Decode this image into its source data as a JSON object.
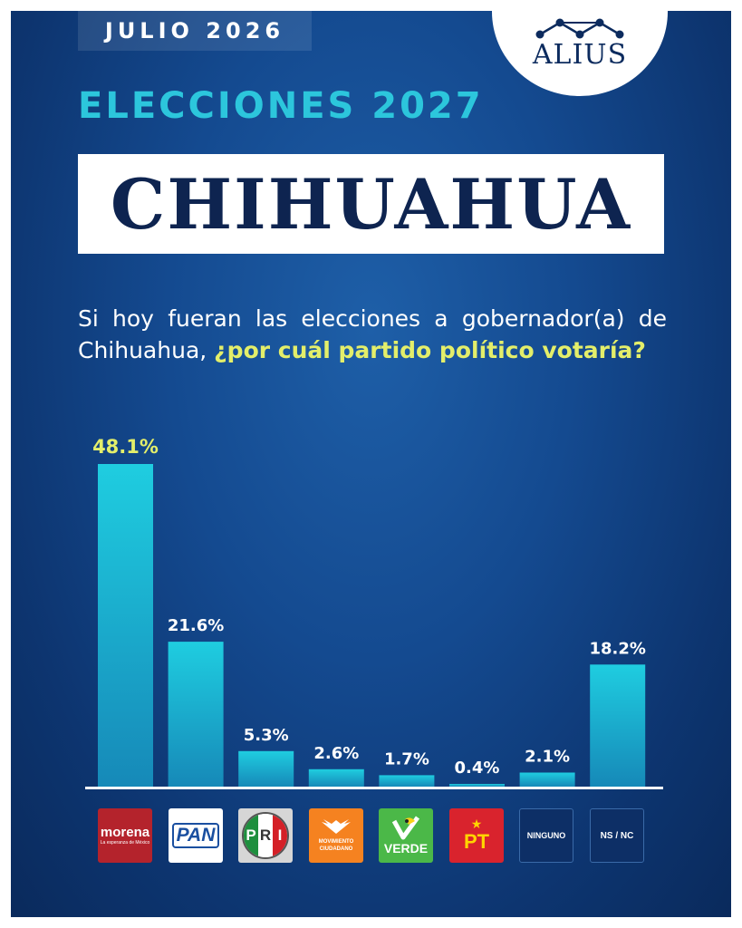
{
  "header": {
    "date": "JULIO 2026",
    "brand": "ALIUS",
    "subtitle": "ELECCIONES 2027",
    "title": "CHIHUAHUA"
  },
  "question": {
    "line1": "Si hoy fueran las elecciones a gobernador(a) de",
    "line2_plain": "Chihuahua, ",
    "line2_highlight": "¿por cuál partido político votaría?"
  },
  "colors": {
    "bar_top": "#1fcde0",
    "bar_bottom": "#1689b8",
    "value_default": "#ffffff",
    "value_leader": "#e3ee6a"
  },
  "chart_data": {
    "type": "bar",
    "categories": [
      "morena",
      "PAN",
      "PRI",
      "MOVIMIENTO CIUDADANO",
      "VERDE",
      "PT",
      "NINGUNO",
      "NS / NC"
    ],
    "values": [
      48.1,
      21.6,
      5.3,
      2.6,
      1.7,
      0.4,
      2.1,
      18.2
    ],
    "value_labels": [
      "48.1%",
      "21.6%",
      "5.3%",
      "2.6%",
      "1.7%",
      "0.4%",
      "2.1%",
      "18.2%"
    ],
    "ylim": [
      0,
      48.1
    ],
    "grid": false,
    "title": "",
    "xlabel": "",
    "ylabel": ""
  },
  "party_logos": {
    "morena": {
      "name": "morena",
      "tagline": "La esperanza de México",
      "bg": "#b4232c"
    },
    "pan": {
      "name": "PAN",
      "bg": "#ffffff",
      "color": "#1a4fa0"
    },
    "pri": {
      "letters": [
        "P",
        "R",
        "I"
      ],
      "colors": [
        "#1e8f3e",
        "#ffffff",
        "#d42027"
      ]
    },
    "mc": {
      "line1": "MOVIMIENTO",
      "line2": "CIUDADANO",
      "bg": "#f58220"
    },
    "verde": {
      "name": "VERDE",
      "bg": "#4bb848"
    },
    "pt": {
      "name": "PT",
      "bg": "#d9232d",
      "star_color": "#ffd400"
    },
    "ninguno": {
      "name": "NINGUNO"
    },
    "nsnc": {
      "name": "NS / NC"
    }
  }
}
